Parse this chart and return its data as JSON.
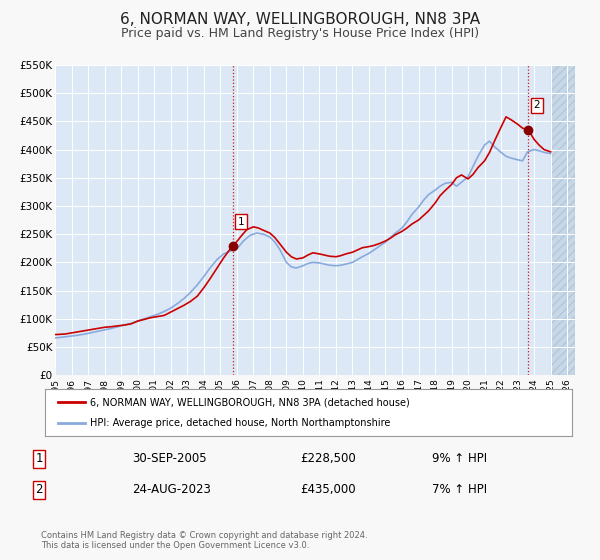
{
  "title": "6, NORMAN WAY, WELLINGBOROUGH, NN8 3PA",
  "subtitle": "Price paid vs. HM Land Registry's House Price Index (HPI)",
  "bg_color": "#f8f8f8",
  "plot_bg_color": "#dce8f5",
  "hatch_bg_color": "#c8d8e8",
  "grid_color": "#ffffff",
  "title_fontsize": 11,
  "subtitle_fontsize": 9,
  "ylim": [
    0,
    550000
  ],
  "yticks": [
    0,
    50000,
    100000,
    150000,
    200000,
    250000,
    300000,
    350000,
    400000,
    450000,
    500000,
    550000
  ],
  "ytick_labels": [
    "£0",
    "£50K",
    "£100K",
    "£150K",
    "£200K",
    "£250K",
    "£300K",
    "£350K",
    "£400K",
    "£450K",
    "£500K",
    "£550K"
  ],
  "xlim_start": 1995.0,
  "xlim_end": 2026.5,
  "hatch_start": 2025.0,
  "xticks": [
    1995,
    1996,
    1997,
    1998,
    1999,
    2000,
    2001,
    2002,
    2003,
    2004,
    2005,
    2006,
    2007,
    2008,
    2009,
    2010,
    2011,
    2012,
    2013,
    2014,
    2015,
    2016,
    2017,
    2018,
    2019,
    2020,
    2021,
    2022,
    2023,
    2024,
    2025,
    2026
  ],
  "red_line_color": "#cc0000",
  "blue_line_color": "#88aadd",
  "marker1_x": 2005.75,
  "marker1_y": 228500,
  "marker2_x": 2023.65,
  "marker2_y": 435000,
  "vline1_x": 2005.75,
  "vline2_x": 2023.65,
  "legend_label_red": "6, NORMAN WAY, WELLINGBOROUGH, NN8 3PA (detached house)",
  "legend_label_blue": "HPI: Average price, detached house, North Northamptonshire",
  "table_row1": [
    "1",
    "30-SEP-2005",
    "£228,500",
    "9% ↑ HPI"
  ],
  "table_row2": [
    "2",
    "24-AUG-2023",
    "£435,000",
    "7% ↑ HPI"
  ],
  "footer_text": "Contains HM Land Registry data © Crown copyright and database right 2024.\nThis data is licensed under the Open Government Licence v3.0.",
  "red_x": [
    1995.0,
    1995.3,
    1995.6,
    1996.0,
    1996.4,
    1996.8,
    1997.2,
    1997.6,
    1998.0,
    1998.4,
    1998.8,
    1999.2,
    1999.6,
    2000.0,
    2000.4,
    2000.8,
    2001.2,
    2001.6,
    2002.0,
    2002.4,
    2002.8,
    2003.2,
    2003.6,
    2004.0,
    2004.4,
    2004.8,
    2005.2,
    2005.5,
    2005.75,
    2006.0,
    2006.3,
    2006.6,
    2007.0,
    2007.3,
    2007.6,
    2008.0,
    2008.3,
    2008.6,
    2009.0,
    2009.3,
    2009.6,
    2010.0,
    2010.3,
    2010.6,
    2011.0,
    2011.3,
    2011.6,
    2012.0,
    2012.3,
    2012.6,
    2013.0,
    2013.3,
    2013.6,
    2014.0,
    2014.3,
    2014.6,
    2015.0,
    2015.3,
    2015.6,
    2016.0,
    2016.3,
    2016.6,
    2017.0,
    2017.3,
    2017.6,
    2018.0,
    2018.3,
    2018.6,
    2019.0,
    2019.3,
    2019.6,
    2020.0,
    2020.3,
    2020.6,
    2021.0,
    2021.3,
    2021.6,
    2022.0,
    2022.3,
    2022.6,
    2023.0,
    2023.3,
    2023.65,
    2024.0,
    2024.3,
    2024.6,
    2025.0
  ],
  "red_y": [
    72000,
    72500,
    73000,
    75000,
    77000,
    79000,
    81000,
    83000,
    85000,
    86000,
    87500,
    89000,
    91000,
    96000,
    99000,
    102000,
    104000,
    106000,
    112000,
    118000,
    124000,
    131000,
    140000,
    155000,
    172000,
    190000,
    208000,
    220000,
    228500,
    237000,
    248000,
    258000,
    263000,
    261000,
    257000,
    252000,
    244000,
    233000,
    218000,
    210000,
    206000,
    208000,
    213000,
    217000,
    215000,
    213000,
    211000,
    210000,
    212000,
    215000,
    218000,
    222000,
    226000,
    228000,
    230000,
    233000,
    238000,
    243000,
    249000,
    255000,
    261000,
    268000,
    275000,
    283000,
    291000,
    305000,
    318000,
    327000,
    338000,
    350000,
    355000,
    348000,
    356000,
    368000,
    380000,
    395000,
    415000,
    440000,
    458000,
    453000,
    445000,
    438000,
    435000,
    418000,
    408000,
    400000,
    396000
  ],
  "blue_x": [
    1995.0,
    1995.3,
    1995.6,
    1996.0,
    1996.4,
    1996.8,
    1997.2,
    1997.6,
    1998.0,
    1998.4,
    1998.8,
    1999.2,
    1999.6,
    2000.0,
    2000.4,
    2000.8,
    2001.2,
    2001.6,
    2002.0,
    2002.4,
    2002.8,
    2003.2,
    2003.6,
    2004.0,
    2004.4,
    2004.8,
    2005.2,
    2005.6,
    2006.0,
    2006.4,
    2006.8,
    2007.2,
    2007.6,
    2008.0,
    2008.3,
    2008.6,
    2009.0,
    2009.3,
    2009.6,
    2010.0,
    2010.3,
    2010.6,
    2011.0,
    2011.3,
    2011.6,
    2012.0,
    2012.3,
    2012.6,
    2013.0,
    2013.3,
    2013.6,
    2014.0,
    2014.3,
    2014.6,
    2015.0,
    2015.3,
    2015.6,
    2016.0,
    2016.3,
    2016.6,
    2017.0,
    2017.3,
    2017.6,
    2018.0,
    2018.3,
    2018.6,
    2019.0,
    2019.3,
    2019.6,
    2020.0,
    2020.3,
    2020.6,
    2021.0,
    2021.3,
    2021.6,
    2022.0,
    2022.3,
    2022.6,
    2023.0,
    2023.3,
    2023.6,
    2024.0,
    2024.3,
    2024.6,
    2025.0
  ],
  "blue_y": [
    66000,
    67000,
    68000,
    69500,
    71000,
    73000,
    75500,
    78000,
    80500,
    83000,
    86000,
    89000,
    92000,
    96000,
    100000,
    104000,
    108000,
    113000,
    119000,
    127000,
    136000,
    147000,
    160000,
    175000,
    191000,
    205000,
    215000,
    220000,
    224000,
    238000,
    248000,
    252000,
    250000,
    245000,
    236000,
    223000,
    200000,
    192000,
    190000,
    194000,
    198000,
    200000,
    199000,
    197000,
    195000,
    194000,
    195000,
    197000,
    200000,
    205000,
    210000,
    216000,
    222000,
    228000,
    236000,
    244000,
    252000,
    261000,
    272000,
    285000,
    298000,
    310000,
    320000,
    328000,
    335000,
    340000,
    342000,
    335000,
    342000,
    352000,
    370000,
    388000,
    408000,
    415000,
    405000,
    395000,
    388000,
    385000,
    382000,
    380000,
    396000,
    400000,
    398000,
    395000,
    393000
  ]
}
